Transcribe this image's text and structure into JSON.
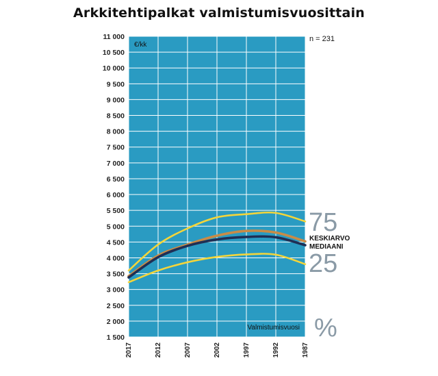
{
  "title": "Arkkitehtipalkat valmistumisvuosittain",
  "chart_data": {
    "type": "line",
    "title": "Arkkitehtipalkat valmistumisvuosittain",
    "ylabel": "€/kk",
    "xlabel": "Valmistumisvuosi",
    "n_label": "n = 231",
    "percent_label": "%",
    "ylim": [
      1500,
      11000
    ],
    "yticks": [
      {
        "value": 1500,
        "label": "1 500"
      },
      {
        "value": 2000,
        "label": "2 000"
      },
      {
        "value": 2500,
        "label": "2 500"
      },
      {
        "value": 3000,
        "label": "3 000"
      },
      {
        "value": 3500,
        "label": "3 500"
      },
      {
        "value": 4000,
        "label": "4 000"
      },
      {
        "value": 4500,
        "label": "4 500"
      },
      {
        "value": 5000,
        "label": "5 000"
      },
      {
        "value": 5500,
        "label": "5 500"
      },
      {
        "value": 6000,
        "label": "6 000"
      },
      {
        "value": 6500,
        "label": "6 500"
      },
      {
        "value": 7000,
        "label": "7 000"
      },
      {
        "value": 7500,
        "label": "7 500"
      },
      {
        "value": 8000,
        "label": "8 000"
      },
      {
        "value": 8500,
        "label": "8 500"
      },
      {
        "value": 9000,
        "label": "9 000"
      },
      {
        "value": 9500,
        "label": "9 500"
      },
      {
        "value": 10000,
        "label": "10 000"
      },
      {
        "value": 10500,
        "label": "10 500"
      },
      {
        "value": 11000,
        "label": "11 000"
      }
    ],
    "xticks": [
      "2017",
      "2012",
      "2007",
      "2002",
      "1997",
      "1992",
      "1987"
    ],
    "grid": true,
    "background_color": "#2a9bc2",
    "series": [
      {
        "name": "75",
        "color": "#f4d53a",
        "values": [
          3600,
          4420,
          4930,
          5280,
          5380,
          5420,
          5150
        ]
      },
      {
        "name": "KESKIARVO",
        "color": "#c98b46",
        "values": [
          3420,
          4070,
          4420,
          4700,
          4850,
          4800,
          4520
        ]
      },
      {
        "name": "MEDIAANI",
        "color": "#1f2f55",
        "values": [
          3380,
          4020,
          4380,
          4580,
          4660,
          4650,
          4400
        ]
      },
      {
        "name": "25",
        "color": "#f4d53a",
        "values": [
          3230,
          3600,
          3860,
          4030,
          4110,
          4100,
          3800
        ]
      }
    ]
  }
}
